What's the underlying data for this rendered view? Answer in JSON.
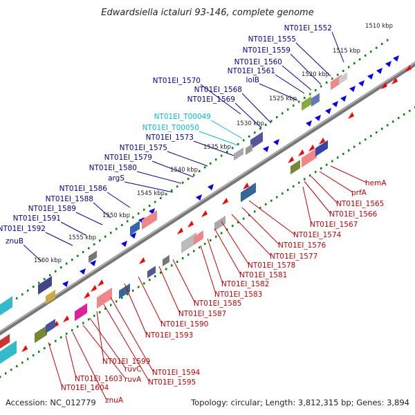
{
  "title": "Edwardsiella ictaluri 93-146, complete genome",
  "footer": {
    "accession": "Accession: NC_012779",
    "summary": "Topology: circular; Length: 3,812,315 bp; Genes: 3,894"
  },
  "colors": {
    "forward_cds": "#0000ff",
    "reverse_cds": "#ff0000",
    "rna_label": "#00bbdd",
    "label_blue": "#000099",
    "label_red": "#cc0000",
    "backbone": "#808080",
    "tick": "#008800"
  },
  "kbp_marks": [
    "1510 kbp",
    "1515 kbp",
    "1520 kbp",
    "1525 kbp",
    "1530 kbp",
    "1535 kbp",
    "1540 kbp",
    "1545 kbp",
    "1550 kbp",
    "1555 kbp",
    "1560 kbp"
  ],
  "top_labels": [
    {
      "text": "NT01EI_1552",
      "type": "cds"
    },
    {
      "text": "NT01EI_1555",
      "type": "cds"
    },
    {
      "text": "NT01EI_1559",
      "type": "cds"
    },
    {
      "text": "NT01EI_1560",
      "type": "cds"
    },
    {
      "text": "NT01EI_1561",
      "type": "cds"
    },
    {
      "text": "lolB",
      "type": "cds"
    },
    {
      "text": "NT01EI_1570",
      "type": "cds"
    },
    {
      "text": "NT01EI_1568",
      "type": "cds"
    },
    {
      "text": "NT01EI_1569",
      "type": "cds"
    },
    {
      "text": "NT01EI_T00049",
      "type": "rna"
    },
    {
      "text": "NT01EI_T00050",
      "type": "rna"
    },
    {
      "text": "NT01EI_1573",
      "type": "cds"
    },
    {
      "text": "NT01EI_1575",
      "type": "cds"
    },
    {
      "text": "NT01EI_1579",
      "type": "cds"
    },
    {
      "text": "NT01EI_1580",
      "type": "cds"
    },
    {
      "text": "argS",
      "type": "cds"
    },
    {
      "text": "NT01EI_1586",
      "type": "cds"
    },
    {
      "text": "NT01EI_1588",
      "type": "cds"
    },
    {
      "text": "NT01EI_1589",
      "type": "cds"
    },
    {
      "text": "NT01EI_1591",
      "type": "cds"
    },
    {
      "text": "NT01EI_1592",
      "type": "cds"
    },
    {
      "text": "znuB",
      "type": "cds"
    }
  ],
  "bottom_labels": [
    "hemA",
    "prfA",
    "NT01EI_1565",
    "NT01EI_1566",
    "NT01EI_1567",
    "NT01EI_1574",
    "NT01EI_1576",
    "NT01EI_1577",
    "NT01EI_1578",
    "NT01EI_1581",
    "NT01EI_1582",
    "NT01EI_1583",
    "NT01EI_1585",
    "NT01EI_1587",
    "NT01EI_1590",
    "NT01EI_1593",
    "NT01EI_1594",
    "NT01EI_1595",
    "NT01EI_1599",
    "ruvC",
    "ruvA",
    "NT01EI_1603",
    "NT01EI_1604",
    "znuA"
  ]
}
